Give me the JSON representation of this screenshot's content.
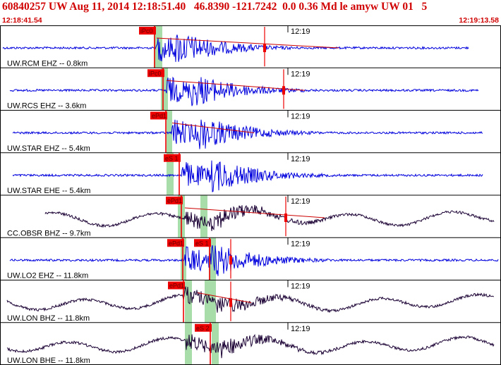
{
  "header": {
    "title": "60840257 UW Aug 11, 2014 12:18:51.40   46.8390 -121.7242  0.0 0.36 Md le amyw UW 01   5",
    "start_time": "12:18:41.54",
    "end_time": "12:19:13.58",
    "tick_label": "12:19",
    "text_color": "#d00000"
  },
  "colors": {
    "blue_trace": "#0000dd",
    "black_trace": "#1a0033",
    "pick": "#ee0000",
    "window": "#a8dca8",
    "fit": "#cc0000"
  },
  "traces": [
    {
      "label": "UW.RCM EHZ -- 0.8km",
      "color": "blue",
      "picks": [
        "iPc0"
      ]
    },
    {
      "label": "UW.RCS EHZ -- 3.6km",
      "color": "blue",
      "picks": [
        "iPc0"
      ]
    },
    {
      "label": "UW.STAR EHZ -- 5.4km",
      "color": "blue",
      "picks": [
        "ePd1"
      ]
    },
    {
      "label": "UW.STAR EHE -- 5.4km",
      "color": "blue",
      "picks": [
        "eS 1"
      ]
    },
    {
      "label": "CC.OBSR BHZ -- 9.7km",
      "color": "black",
      "picks": [
        "ePd1"
      ]
    },
    {
      "label": "UW.LO2 EHZ -- 11.8km",
      "color": "blue",
      "picks": [
        "ePd1",
        "eS 1"
      ]
    },
    {
      "label": "UW.LON BHZ -- 11.8km",
      "color": "black",
      "picks": [
        "ePd1"
      ]
    },
    {
      "label": "UW.LON BHE -- 11.8km",
      "color": "black",
      "picks": [
        "eS 2"
      ]
    }
  ]
}
